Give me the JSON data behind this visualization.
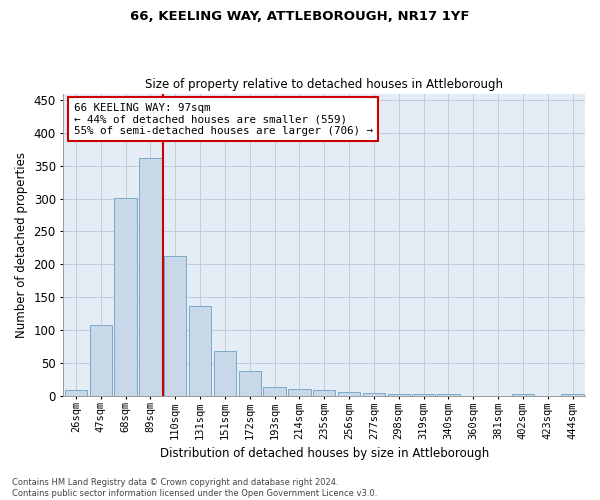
{
  "title_line1": "66, KEELING WAY, ATTLEBOROUGH, NR17 1YF",
  "title_line2": "Size of property relative to detached houses in Attleborough",
  "xlabel": "Distribution of detached houses by size in Attleborough",
  "ylabel": "Number of detached properties",
  "footnote": "Contains HM Land Registry data © Crown copyright and database right 2024.\nContains public sector information licensed under the Open Government Licence v3.0.",
  "bar_labels": [
    "26sqm",
    "47sqm",
    "68sqm",
    "89sqm",
    "110sqm",
    "131sqm",
    "151sqm",
    "172sqm",
    "193sqm",
    "214sqm",
    "235sqm",
    "256sqm",
    "277sqm",
    "298sqm",
    "319sqm",
    "340sqm",
    "360sqm",
    "381sqm",
    "402sqm",
    "423sqm",
    "444sqm"
  ],
  "bar_values": [
    8,
    108,
    301,
    362,
    212,
    136,
    68,
    38,
    13,
    10,
    9,
    6,
    4,
    2,
    2,
    2,
    0,
    0,
    3,
    0,
    3
  ],
  "bar_color": "#c8d8e8",
  "bar_edge_color": "#7aaac8",
  "grid_color": "#c0ccd8",
  "background_color": "#e4edf5",
  "red_line_x": 3.5,
  "annotation_box_text": "66 KEELING WAY: 97sqm\n← 44% of detached houses are smaller (559)\n55% of semi-detached houses are larger (706) →",
  "annotation_box_color": "#ffffff",
  "annotation_box_edge_color": "#cc0000",
  "ylim": [
    0,
    460
  ],
  "yticks": [
    0,
    50,
    100,
    150,
    200,
    250,
    300,
    350,
    400,
    450
  ]
}
